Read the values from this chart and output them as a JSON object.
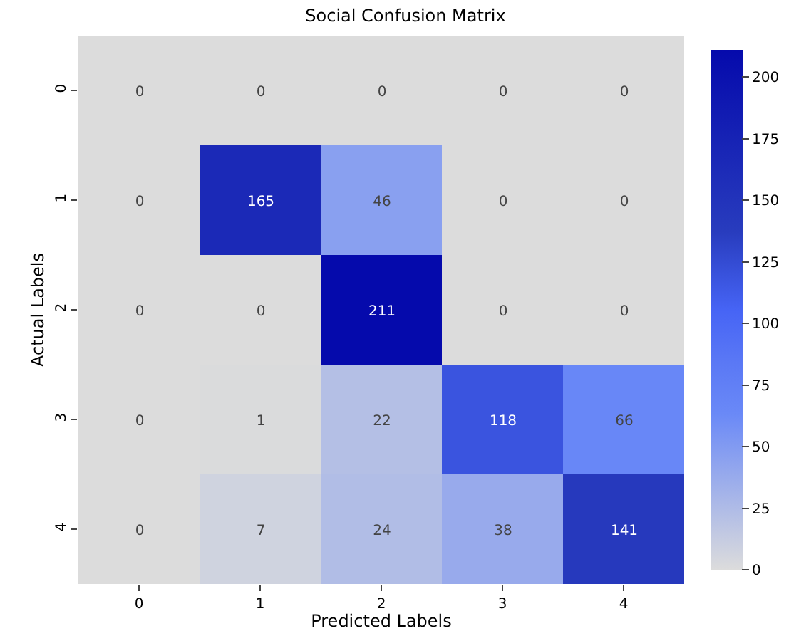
{
  "chart_data": {
    "type": "heatmap",
    "title": "Social Confusion Matrix",
    "xlabel": "Predicted Labels",
    "ylabel": "Actual Labels",
    "categories": [
      "0",
      "1",
      "2",
      "3",
      "4"
    ],
    "y_categories": [
      "0",
      "1",
      "2",
      "3",
      "4"
    ],
    "cells": [
      [
        0,
        0,
        0,
        0,
        0
      ],
      [
        0,
        165,
        46,
        0,
        0
      ],
      [
        0,
        0,
        211,
        0,
        0
      ],
      [
        0,
        1,
        22,
        118,
        66
      ],
      [
        0,
        7,
        24,
        38,
        141
      ]
    ],
    "clim": [
      0,
      211
    ],
    "cticks": [
      0,
      25,
      50,
      75,
      100,
      125,
      150,
      175,
      200
    ],
    "data_labels": true
  }
}
